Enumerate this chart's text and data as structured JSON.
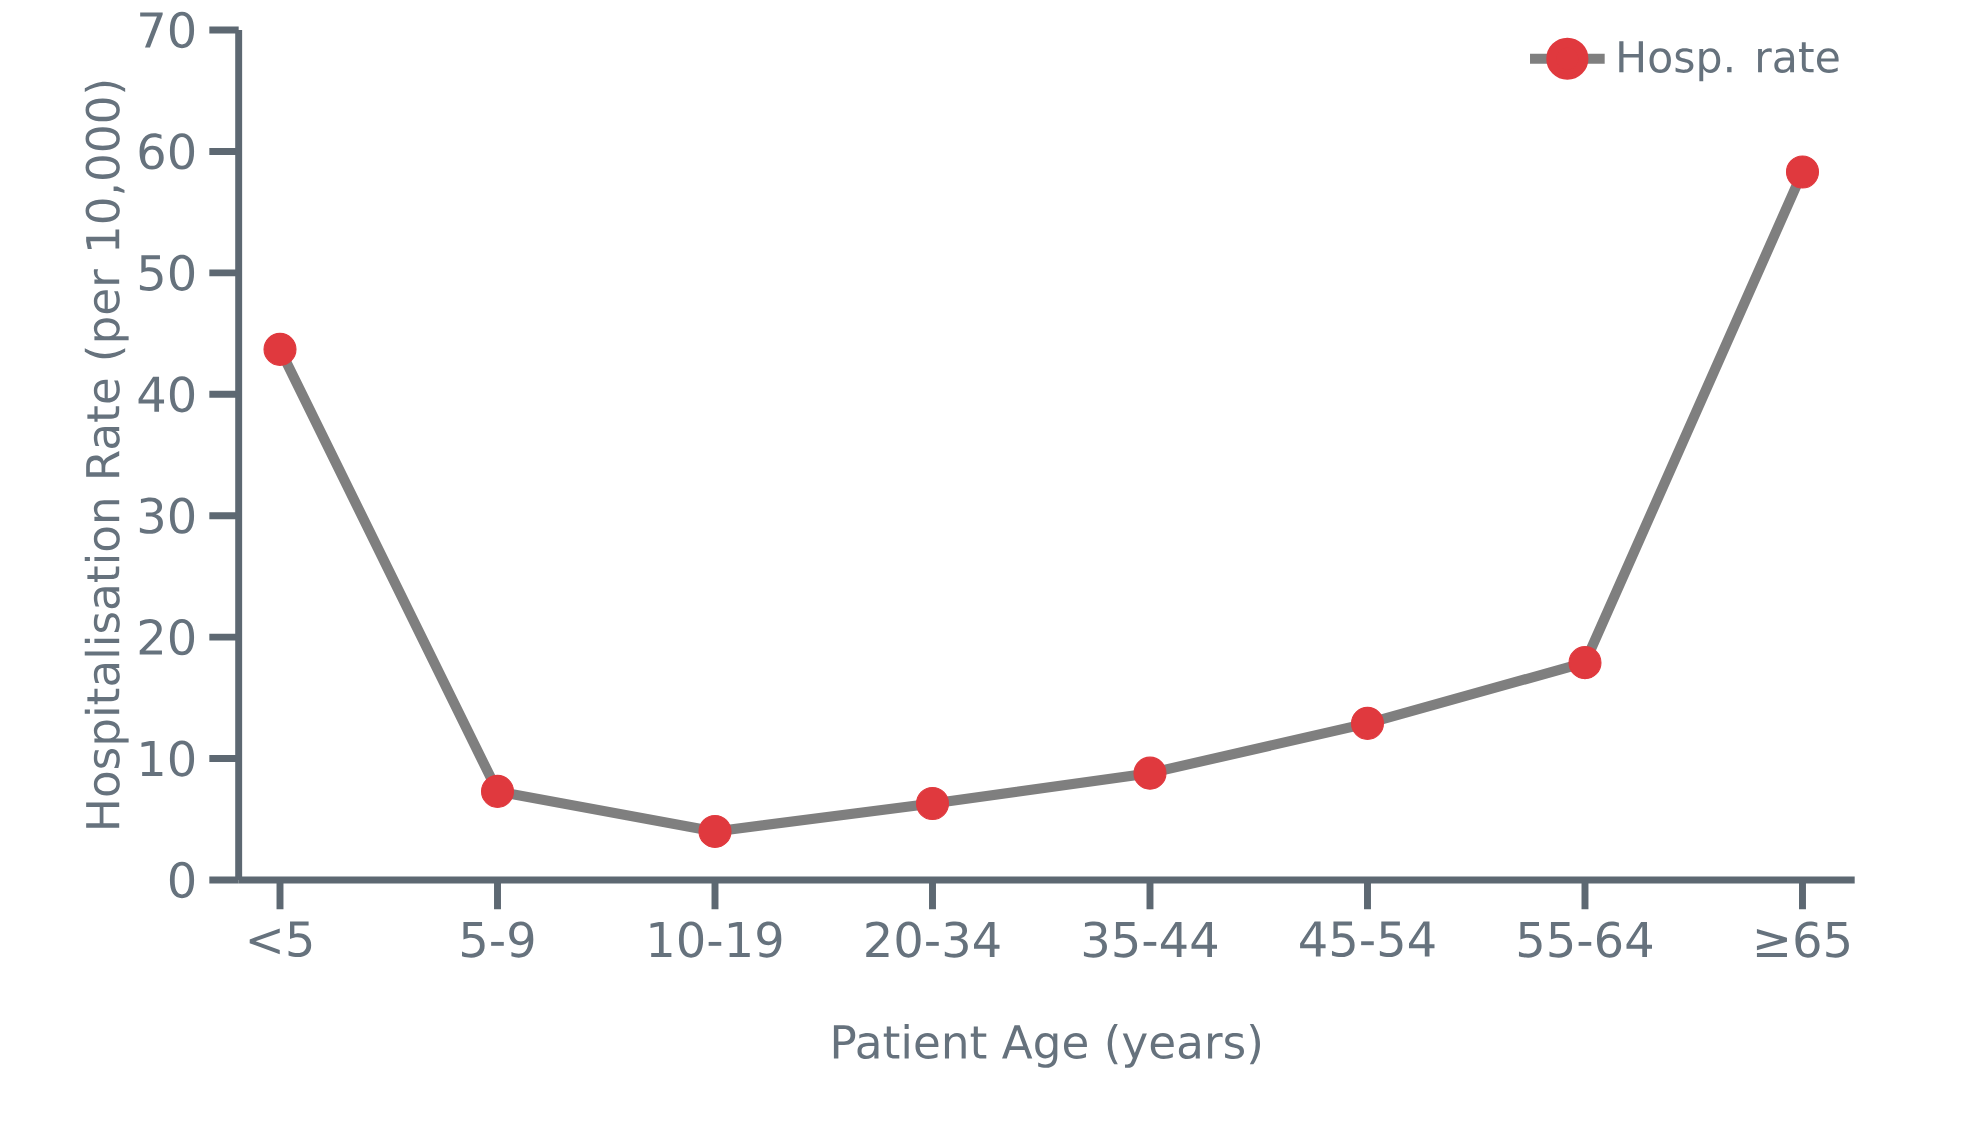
{
  "chart_data": {
    "type": "line",
    "xlabel": "Patient Age (years)",
    "ylabel": "Hospitalisation Rate (per 10,000)",
    "categories": [
      "<5",
      "5-9",
      "10-19",
      "20-34",
      "35-44",
      "45-54",
      "55-64",
      "≥65"
    ],
    "series": [
      {
        "name": "Hosp. rate",
        "color": "#7f7f7f",
        "colors": [
          "#e0393e",
          "#e0393e",
          "#e0393e",
          "#e0393e",
          "#e0393e",
          "#e0393e",
          "#e0393e",
          "#e0393e"
        ],
        "values": [
          43.7,
          7.3,
          4.0,
          6.3,
          8.8,
          12.9,
          17.9,
          58.3
        ]
      }
    ],
    "ylim": [
      0,
      70
    ],
    "yticks": [
      0,
      10,
      20,
      30,
      40,
      50,
      60,
      70
    ],
    "grid": false,
    "legend": "top right",
    "marker": "circle",
    "line_style": "solid"
  }
}
